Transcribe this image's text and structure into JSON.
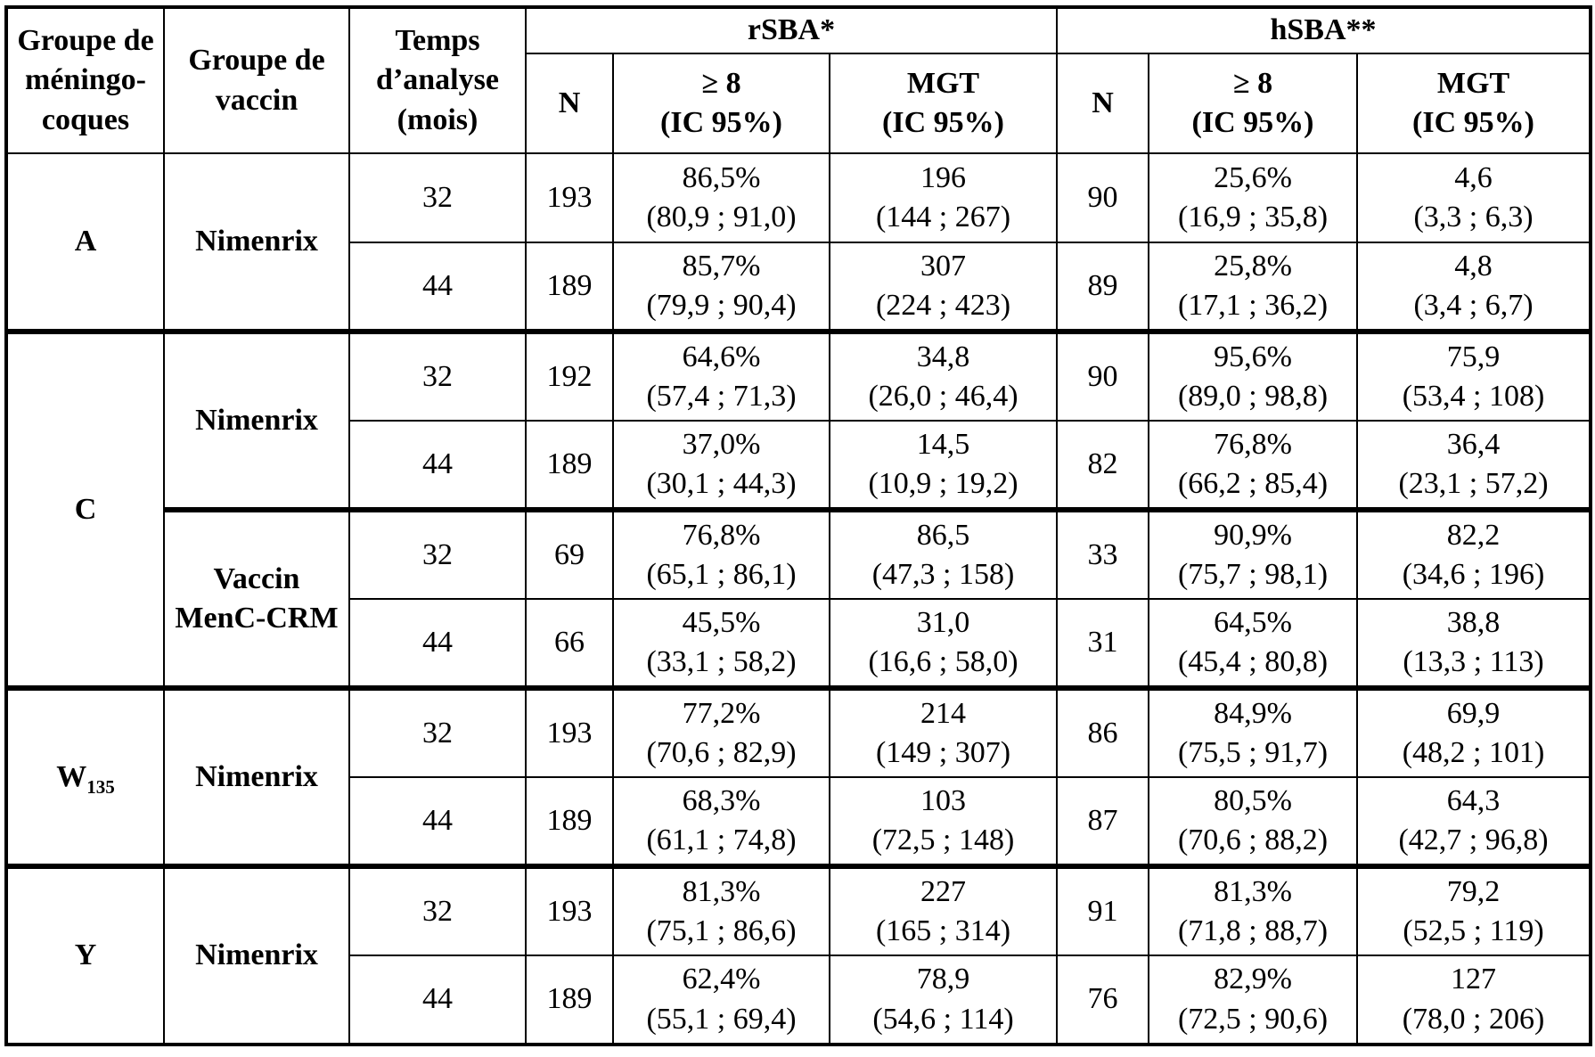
{
  "table": {
    "headers": {
      "group": "Groupe de méningo-coques",
      "vaccine": "Groupe de vaccin",
      "time": "Temps d’analyse (mois)",
      "rsba": "rSBA*",
      "hsba": "hSBA**",
      "n": "N",
      "gte8": "≥ 8",
      "mgt": "MGT",
      "ci": "(IC 95%)"
    },
    "serogroups": [
      {
        "label": "A",
        "sub": ""
      },
      {
        "label": "C",
        "sub": ""
      },
      {
        "label": "W",
        "sub": "135"
      },
      {
        "label": "Y",
        "sub": ""
      }
    ],
    "vaccines": {
      "nimenrix": "Nimenrix",
      "menc_crm": "Vaccin MenC-CRM"
    },
    "rows": [
      {
        "time": "32",
        "rsba_n": "193",
        "rsba_8": "86,5%",
        "rsba_8_ci": "(80,9 ; 91,0)",
        "rsba_mgt": "196",
        "rsba_mgt_ci": "(144 ; 267)",
        "hsba_n": "90",
        "hsba_8": "25,6%",
        "hsba_8_ci": "(16,9 ; 35,8)",
        "hsba_mgt": "4,6",
        "hsba_mgt_ci": "(3,3 ; 6,3)"
      },
      {
        "time": "44",
        "rsba_n": "189",
        "rsba_8": "85,7%",
        "rsba_8_ci": "(79,9 ; 90,4)",
        "rsba_mgt": "307",
        "rsba_mgt_ci": "(224 ; 423)",
        "hsba_n": "89",
        "hsba_8": "25,8%",
        "hsba_8_ci": "(17,1 ; 36,2)",
        "hsba_mgt": "4,8",
        "hsba_mgt_ci": "(3,4 ; 6,7)"
      },
      {
        "time": "32",
        "rsba_n": "192",
        "rsba_8": "64,6%",
        "rsba_8_ci": "(57,4 ; 71,3)",
        "rsba_mgt": "34,8",
        "rsba_mgt_ci": "(26,0 ; 46,4)",
        "hsba_n": "90",
        "hsba_8": "95,6%",
        "hsba_8_ci": "(89,0 ; 98,8)",
        "hsba_mgt": "75,9",
        "hsba_mgt_ci": "(53,4 ; 108)"
      },
      {
        "time": "44",
        "rsba_n": "189",
        "rsba_8": "37,0%",
        "rsba_8_ci": "(30,1 ; 44,3)",
        "rsba_mgt": "14,5",
        "rsba_mgt_ci": "(10,9 ; 19,2)",
        "hsba_n": "82",
        "hsba_8": "76,8%",
        "hsba_8_ci": "(66,2 ; 85,4)",
        "hsba_mgt": "36,4",
        "hsba_mgt_ci": "(23,1 ; 57,2)"
      },
      {
        "time": "32",
        "rsba_n": "69",
        "rsba_8": "76,8%",
        "rsba_8_ci": "(65,1 ; 86,1)",
        "rsba_mgt": "86,5",
        "rsba_mgt_ci": "(47,3 ; 158)",
        "hsba_n": "33",
        "hsba_8": "90,9%",
        "hsba_8_ci": "(75,7 ; 98,1)",
        "hsba_mgt": "82,2",
        "hsba_mgt_ci": "(34,6 ; 196)"
      },
      {
        "time": "44",
        "rsba_n": "66",
        "rsba_8": "45,5%",
        "rsba_8_ci": "(33,1 ; 58,2)",
        "rsba_mgt": "31,0",
        "rsba_mgt_ci": "(16,6 ; 58,0)",
        "hsba_n": "31",
        "hsba_8": "64,5%",
        "hsba_8_ci": "(45,4 ; 80,8)",
        "hsba_mgt": "38,8",
        "hsba_mgt_ci": "(13,3 ; 113)"
      },
      {
        "time": "32",
        "rsba_n": "193",
        "rsba_8": "77,2%",
        "rsba_8_ci": "(70,6 ; 82,9)",
        "rsba_mgt": "214",
        "rsba_mgt_ci": "(149 ; 307)",
        "hsba_n": "86",
        "hsba_8": "84,9%",
        "hsba_8_ci": "(75,5 ; 91,7)",
        "hsba_mgt": "69,9",
        "hsba_mgt_ci": "(48,2 ; 101)"
      },
      {
        "time": "44",
        "rsba_n": "189",
        "rsba_8": "68,3%",
        "rsba_8_ci": "(61,1 ; 74,8)",
        "rsba_mgt": "103",
        "rsba_mgt_ci": "(72,5 ; 148)",
        "hsba_n": "87",
        "hsba_8": "80,5%",
        "hsba_8_ci": "(70,6 ; 88,2)",
        "hsba_mgt": "64,3",
        "hsba_mgt_ci": "(42,7 ; 96,8)"
      },
      {
        "time": "32",
        "rsba_n": "193",
        "rsba_8": "81,3%",
        "rsba_8_ci": "(75,1 ; 86,6)",
        "rsba_mgt": "227",
        "rsba_mgt_ci": "(165 ; 314)",
        "hsba_n": "91",
        "hsba_8": "81,3%",
        "hsba_8_ci": "(71,8 ; 88,7)",
        "hsba_mgt": "79,2",
        "hsba_mgt_ci": "(52,5 ; 119)"
      },
      {
        "time": "44",
        "rsba_n": "189",
        "rsba_8": "62,4%",
        "rsba_8_ci": "(55,1 ; 69,4)",
        "rsba_mgt": "78,9",
        "rsba_mgt_ci": "(54,6 ; 114)",
        "hsba_n": "76",
        "hsba_8": "82,9%",
        "hsba_8_ci": "(72,5 ; 90,6)",
        "hsba_mgt": "127",
        "hsba_mgt_ci": "(78,0 ; 206)"
      }
    ]
  }
}
